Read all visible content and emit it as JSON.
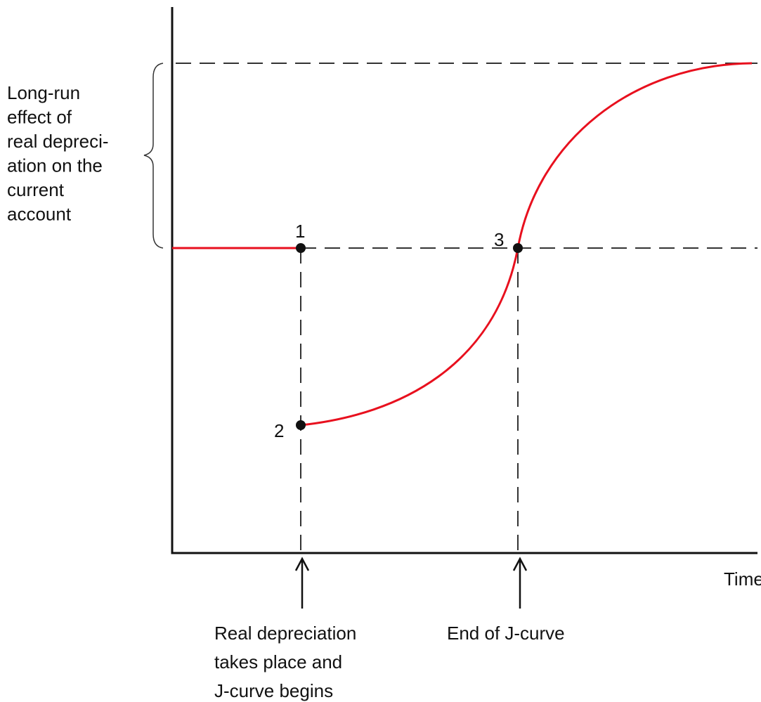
{
  "long_run_label": [
    "Long-run",
    "effect of",
    "real depreci-",
    "ation on the",
    "current",
    "account"
  ],
  "points": [
    "1",
    "2",
    "3"
  ],
  "x_axis_label": "Time",
  "events": [
    {
      "lines": [
        "Real depreciation",
        "takes place and",
        "J-curve begins"
      ]
    },
    {
      "lines": [
        "End of J-curve"
      ]
    }
  ]
}
